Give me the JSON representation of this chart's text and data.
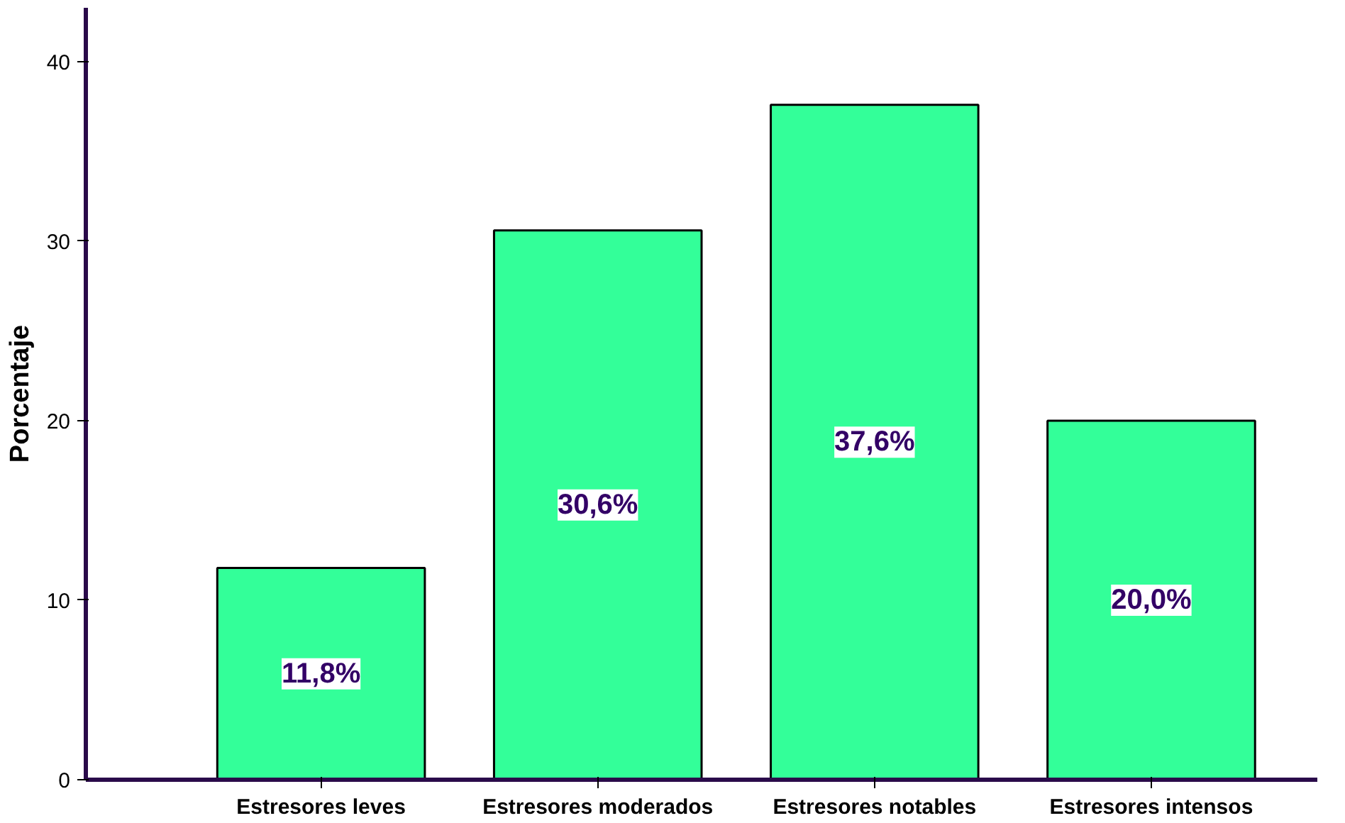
{
  "chart_data": {
    "type": "bar",
    "ylabel": "Porcentaje",
    "categories": [
      "Estresores leves",
      "Estresores moderados",
      "Estresores notables",
      "Estresores intensos"
    ],
    "values": [
      11.8,
      30.6,
      37.6,
      20.0
    ],
    "value_labels": [
      "11,8%",
      "30,6%",
      "37,6%",
      "20,0%"
    ],
    "color": "#33ff99",
    "ylim": [
      0,
      43
    ],
    "yticks": [
      0,
      10,
      20,
      30,
      40
    ],
    "grid": false
  }
}
